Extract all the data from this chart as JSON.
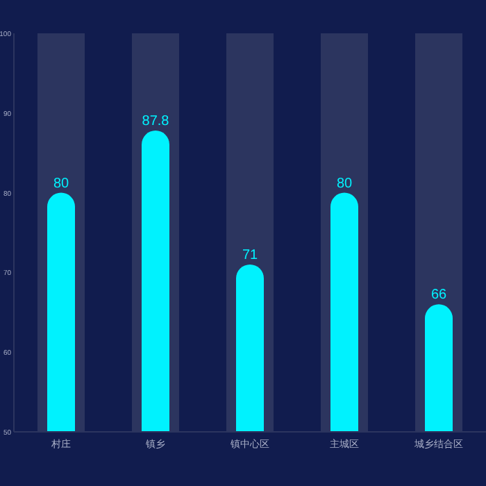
{
  "chart_data": {
    "type": "bar",
    "categories": [
      "村庄",
      "镇乡",
      "镇中心区",
      "主城区",
      "城乡结合区"
    ],
    "series": [
      {
        "color": "#2c355f",
        "values": [
          100,
          100,
          100,
          100,
          100
        ]
      },
      {
        "color": "#00f2fe",
        "values": [
          80,
          87.8,
          71,
          80,
          66
        ],
        "value_labels": [
          "80",
          "87.8",
          "71",
          "80",
          "66"
        ]
      }
    ],
    "ylim": [
      50,
      100
    ],
    "yticks": [
      50,
      60,
      70,
      80,
      90,
      100
    ],
    "grid": false
  }
}
